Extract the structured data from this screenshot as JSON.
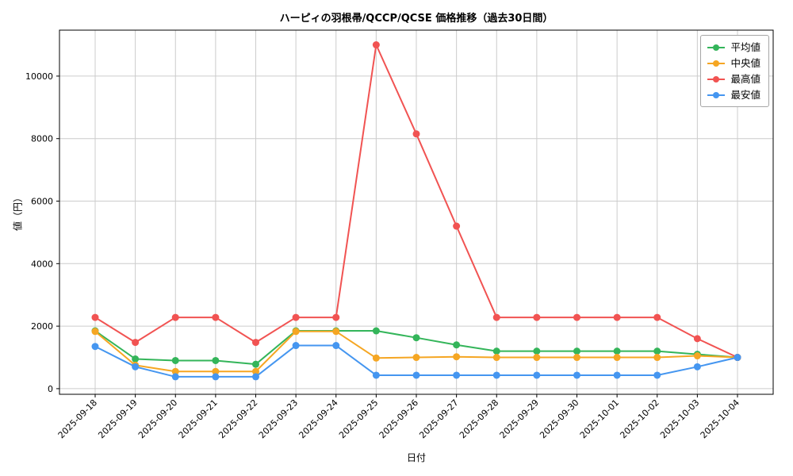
{
  "chart_data": {
    "type": "line",
    "title": "ハーピィの羽根帚/QCCP/QCSE 価格推移（過去30日間）",
    "xlabel": "日付",
    "ylabel": "値（円）",
    "categories": [
      "2025-09-18",
      "2025-09-19",
      "2025-09-20",
      "2025-09-21",
      "2025-09-22",
      "2025-09-23",
      "2025-09-24",
      "2025-09-25",
      "2025-09-26",
      "2025-09-27",
      "2025-09-28",
      "2025-09-29",
      "2025-09-30",
      "2025-10-01",
      "2025-10-02",
      "2025-10-03",
      "2025-10-04"
    ],
    "series": [
      {
        "name": "平均値",
        "color": "#34b55a",
        "values": [
          1850,
          950,
          900,
          900,
          780,
          1850,
          1850,
          1850,
          1630,
          1400,
          1200,
          1200,
          1200,
          1200,
          1200,
          1100,
          1000
        ]
      },
      {
        "name": "中央値",
        "color": "#f5a623",
        "values": [
          1830,
          750,
          550,
          550,
          550,
          1830,
          1830,
          980,
          1000,
          1020,
          1000,
          1000,
          1000,
          1000,
          1000,
          1050,
          1000
        ]
      },
      {
        "name": "最高値",
        "color": "#f15352",
        "values": [
          2280,
          1480,
          2280,
          2280,
          1480,
          2280,
          2280,
          11000,
          8150,
          5200,
          2280,
          2280,
          2280,
          2280,
          2280,
          1600,
          1000
        ]
      },
      {
        "name": "最安値",
        "color": "#4596f0",
        "values": [
          1350,
          700,
          380,
          380,
          380,
          1380,
          1380,
          430,
          430,
          430,
          430,
          430,
          430,
          430,
          430,
          700,
          1000
        ]
      }
    ],
    "ylim": [
      -180,
      11470
    ],
    "yticks": [
      0,
      2000,
      4000,
      6000,
      8000,
      10000
    ],
    "grid": true,
    "grid_color": "#cccccc",
    "legend_position": "upper right"
  }
}
